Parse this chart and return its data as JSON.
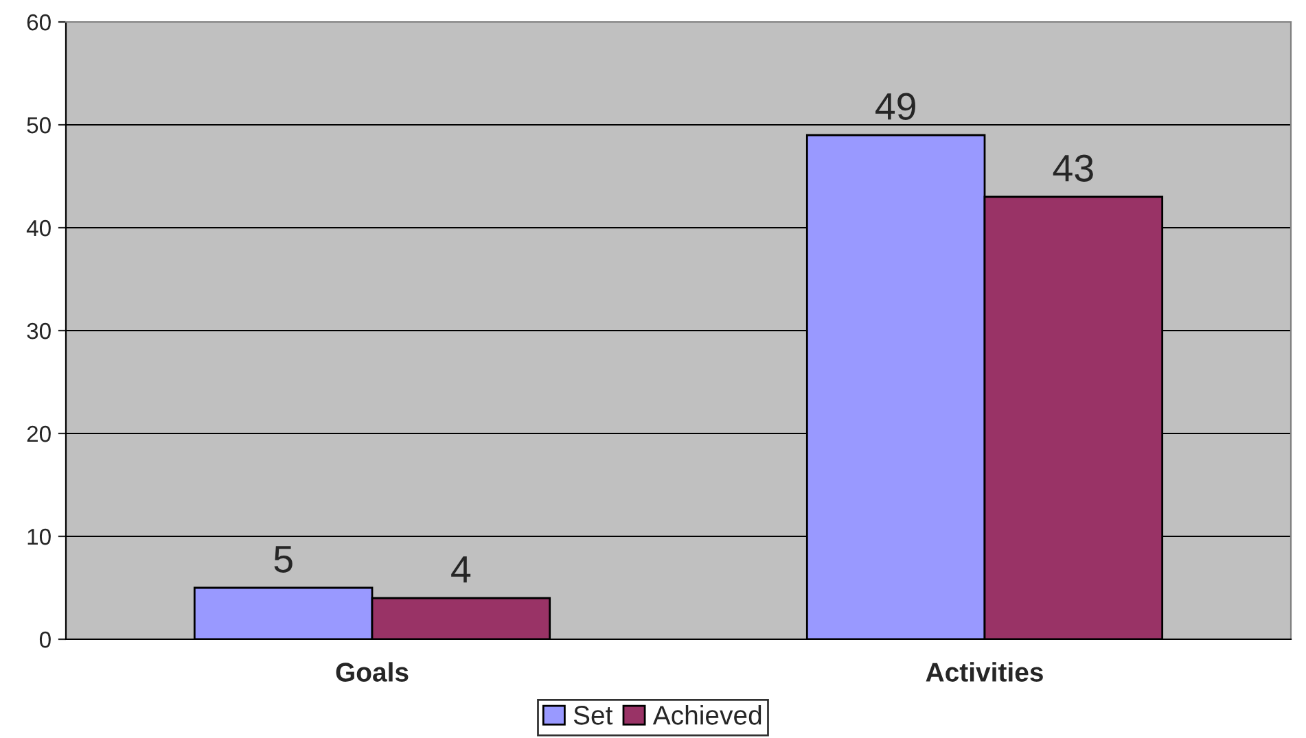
{
  "chart_data": {
    "type": "bar",
    "categories": [
      "Goals",
      "Activities"
    ],
    "series": [
      {
        "name": "Set",
        "color": "#9999ff",
        "values": [
          5,
          49
        ]
      },
      {
        "name": "Achieved",
        "color": "#993366",
        "values": [
          4,
          43
        ]
      }
    ],
    "ylim": [
      0,
      60
    ],
    "yticks": [
      0,
      10,
      20,
      30,
      40,
      50,
      60
    ],
    "grid": "y",
    "legend": "bottom",
    "data_labels": true
  }
}
